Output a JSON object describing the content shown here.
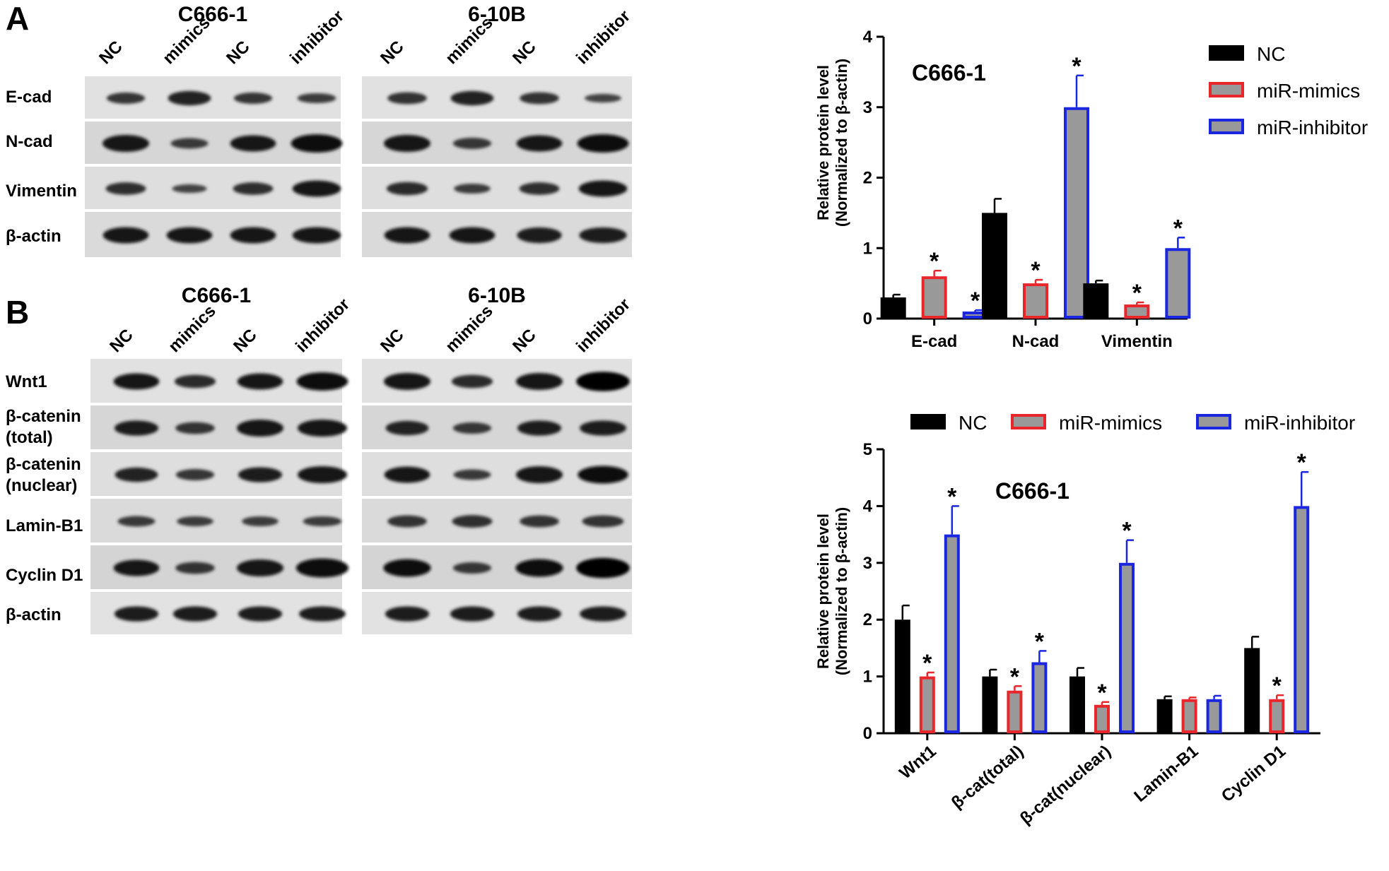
{
  "panels": [
    {
      "letter": "A",
      "blots": [
        {
          "cell": "C666-1",
          "lanes": [
            "NC",
            "mimics",
            "NC",
            "inhibitor"
          ],
          "rows": [
            {
              "label": [
                "E-cad"
              ],
              "intensity": [
                0.55,
                0.8,
                0.55,
                0.45
              ]
            },
            {
              "label": [
                "N-cad"
              ],
              "intensity": [
                1.0,
                0.5,
                0.95,
                1.1
              ]
            },
            {
              "label": [
                "Vimentin"
              ],
              "intensity": [
                0.65,
                0.35,
                0.65,
                0.95
              ]
            },
            {
              "label": [
                "β-actin"
              ],
              "intensity": [
                0.95,
                0.95,
                0.95,
                0.95
              ]
            }
          ]
        },
        {
          "cell": "6-10B",
          "lanes": [
            "NC",
            "mimics",
            "NC",
            "inhibitor"
          ],
          "rows": [
            {
              "label": [
                "E-cad"
              ],
              "intensity": [
                0.6,
                0.8,
                0.6,
                0.35
              ]
            },
            {
              "label": [
                "N-cad"
              ],
              "intensity": [
                1.0,
                0.55,
                0.95,
                1.1
              ]
            },
            {
              "label": [
                "Vimentin"
              ],
              "intensity": [
                0.7,
                0.45,
                0.65,
                0.95
              ]
            },
            {
              "label": [
                "β-actin"
              ],
              "intensity": [
                0.95,
                0.95,
                0.9,
                0.9
              ]
            }
          ]
        }
      ]
    },
    {
      "letter": "B",
      "blots": [
        {
          "cell": "C666-1",
          "lanes": [
            "NC",
            "mimics",
            "NC",
            "inhibitor"
          ],
          "rows": [
            {
              "label": [
                "Wnt1"
              ],
              "intensity": [
                0.95,
                0.7,
                0.95,
                1.1
              ]
            },
            {
              "label": [
                "β-catenin",
                "(total)"
              ],
              "intensity": [
                0.85,
                0.6,
                1.0,
                1.0
              ]
            },
            {
              "label": [
                "β-catenin",
                "(nuclear)"
              ],
              "intensity": [
                0.8,
                0.55,
                0.85,
                1.0
              ]
            },
            {
              "label": [
                "Lamin-B1"
              ],
              "intensity": [
                0.5,
                0.45,
                0.45,
                0.45
              ]
            },
            {
              "label": [
                "Cyclin D1"
              ],
              "intensity": [
                0.95,
                0.6,
                1.0,
                1.15
              ]
            },
            {
              "label": [
                "β-actin"
              ],
              "intensity": [
                0.85,
                0.85,
                0.85,
                0.85
              ]
            }
          ]
        },
        {
          "cell": "6-10B",
          "lanes": [
            "NC",
            "mimics",
            "NC",
            "inhibitor"
          ],
          "rows": [
            {
              "label": [
                "Wnt1"
              ],
              "intensity": [
                1.0,
                0.7,
                1.0,
                1.2
              ]
            },
            {
              "label": [
                "β-catenin",
                "(total)"
              ],
              "intensity": [
                0.8,
                0.55,
                0.85,
                0.85
              ]
            },
            {
              "label": [
                "β-catenin",
                "(nuclear)"
              ],
              "intensity": [
                0.95,
                0.5,
                1.0,
                1.05
              ]
            },
            {
              "label": [
                "Lamin-B1"
              ],
              "intensity": [
                0.6,
                0.65,
                0.6,
                0.6
              ]
            },
            {
              "label": [
                "Cyclin D1"
              ],
              "intensity": [
                1.05,
                0.55,
                1.05,
                1.25
              ]
            },
            {
              "label": [
                "β-actin"
              ],
              "intensity": [
                0.85,
                0.85,
                0.85,
                0.85
              ]
            }
          ]
        }
      ]
    }
  ],
  "chart_data": [
    {
      "type": "bar",
      "title": "C666-1",
      "ylabel": [
        "Relative  protein  level",
        "(Normalized to β-actin)"
      ],
      "xlabel": "",
      "ylim": [
        0,
        4
      ],
      "yticks": [
        0,
        1,
        2,
        3,
        4
      ],
      "categories": [
        "E-cad",
        "N-cad",
        "Vimentin"
      ],
      "series": [
        {
          "name": "NC",
          "values": [
            0.3,
            1.5,
            0.5
          ],
          "errors": [
            0.04,
            0.2,
            0.04
          ],
          "sig": [
            false,
            false,
            false
          ]
        },
        {
          "name": "miR-mimics",
          "values": [
            0.6,
            0.5,
            0.2
          ],
          "errors": [
            0.08,
            0.05,
            0.03
          ],
          "sig": [
            true,
            true,
            true
          ]
        },
        {
          "name": "miR-inhibitor",
          "values": [
            0.1,
            3.0,
            1.0
          ],
          "errors": [
            0.02,
            0.45,
            0.15
          ],
          "sig": [
            true,
            true,
            true
          ]
        }
      ],
      "sig_marker": "*",
      "legend": "top-right",
      "colors": {
        "NC": "#000000",
        "miR-mimics": "#e8262b",
        "miR-inhibitor": "#1a26e0",
        "fill": "#999999"
      }
    },
    {
      "type": "bar",
      "title": "C666-1",
      "ylabel": [
        "Relative  protein  level",
        "(Normalized to β-actin)"
      ],
      "xlabel": "",
      "ylim": [
        0,
        5
      ],
      "yticks": [
        0,
        1,
        2,
        3,
        4,
        5
      ],
      "categories": [
        "Wnt1",
        "β-cat(total)",
        "β-cat(nuclear)",
        "Lamin-B1",
        "Cyclin D1"
      ],
      "series": [
        {
          "name": "NC",
          "values": [
            2.0,
            1.0,
            1.0,
            0.6,
            1.5
          ],
          "errors": [
            0.25,
            0.12,
            0.15,
            0.05,
            0.2
          ],
          "sig": [
            false,
            false,
            false,
            false,
            false
          ]
        },
        {
          "name": "miR-mimics",
          "values": [
            1.0,
            0.75,
            0.5,
            0.6,
            0.6
          ],
          "errors": [
            0.07,
            0.08,
            0.05,
            0.03,
            0.07
          ],
          "sig": [
            true,
            true,
            true,
            false,
            true
          ]
        },
        {
          "name": "miR-inhibitor",
          "values": [
            3.5,
            1.25,
            3.0,
            0.6,
            4.0
          ],
          "errors": [
            0.5,
            0.2,
            0.4,
            0.06,
            0.6
          ],
          "sig": [
            true,
            true,
            true,
            false,
            true
          ]
        }
      ],
      "sig_marker": "*",
      "legend": "top",
      "colors": {
        "NC": "#000000",
        "miR-mimics": "#e8262b",
        "miR-inhibitor": "#1a26e0",
        "fill": "#999999"
      }
    }
  ]
}
